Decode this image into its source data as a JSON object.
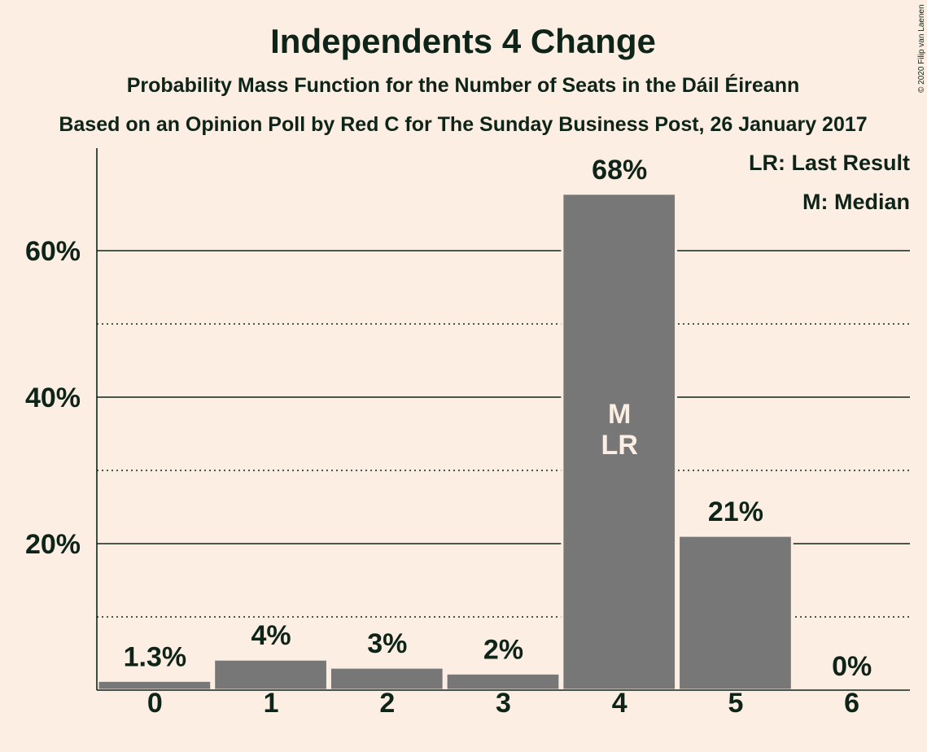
{
  "chart_data": {
    "type": "bar",
    "title": "Independents 4 Change",
    "subtitle": "Probability Mass Function for the Number of Seats in the Dáil Éireann",
    "subtitle2": "Based on an Opinion Poll by Red C for The Sunday Business Post, 26 January 2017",
    "copyright": "© 2020 Filip van Laenen",
    "legend": [
      "LR: Last Result",
      "M: Median"
    ],
    "legend_position": "top-right",
    "categories": [
      "0",
      "1",
      "2",
      "3",
      "4",
      "5",
      "6"
    ],
    "values": [
      1.3,
      4.2,
      3.1,
      2.3,
      67.8,
      21.1,
      0
    ],
    "data_labels": [
      "1.3%",
      "4%",
      "3%",
      "2%",
      "68%",
      "21%",
      "0%"
    ],
    "bar_annotations": [
      {
        "category": "4",
        "lines": [
          "M",
          "LR"
        ]
      }
    ],
    "yticks": [
      {
        "value": 20,
        "label": "20%"
      },
      {
        "value": 40,
        "label": "40%"
      },
      {
        "value": 60,
        "label": "60%"
      }
    ],
    "ylim": [
      0,
      73.5
    ],
    "grid": {
      "major_solid": [
        20,
        40,
        60
      ],
      "minor_dotted": [
        10,
        30,
        50
      ]
    },
    "xlabel": "",
    "ylabel": "",
    "colors": {
      "background": "#fdeee4",
      "bar": "#777777",
      "text": "#0f2418",
      "axis": "#0f2418"
    }
  }
}
